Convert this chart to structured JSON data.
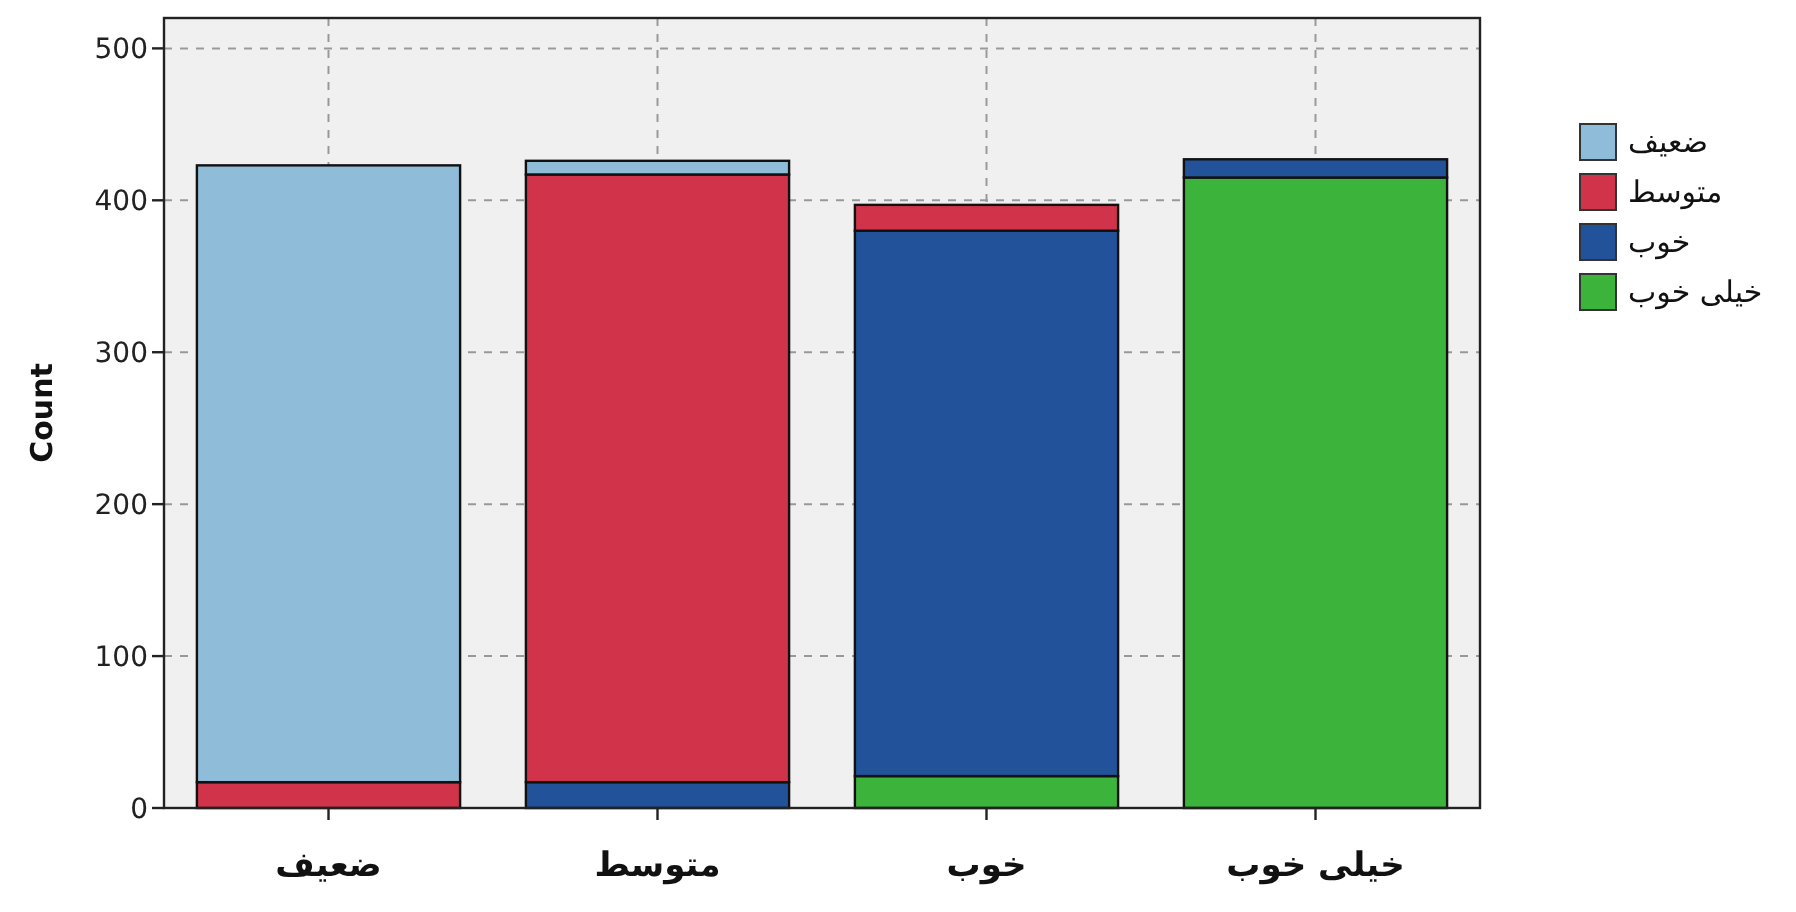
{
  "chart_data": {
    "type": "bar",
    "stacked": true,
    "ylabel": "Count",
    "categories": [
      "ضعیف",
      "متوسط",
      "خوب",
      "خیلی خوب"
    ],
    "series": [
      {
        "name": "خیلی خوب",
        "color": "#3cb43c",
        "values": [
          0,
          0,
          21,
          415
        ]
      },
      {
        "name": "خوب",
        "color": "#22529a",
        "values": [
          0,
          17,
          359,
          12
        ]
      },
      {
        "name": "متوسط",
        "color": "#d0334a",
        "values": [
          17,
          400,
          17,
          0
        ]
      },
      {
        "name": "ضعیف",
        "color": "#8fbcd8",
        "values": [
          406,
          9,
          0,
          0
        ]
      }
    ],
    "ylim": [
      0,
      520
    ],
    "yticks": [
      0,
      100,
      200,
      300,
      400,
      500
    ],
    "grid": true,
    "legend": "right"
  }
}
